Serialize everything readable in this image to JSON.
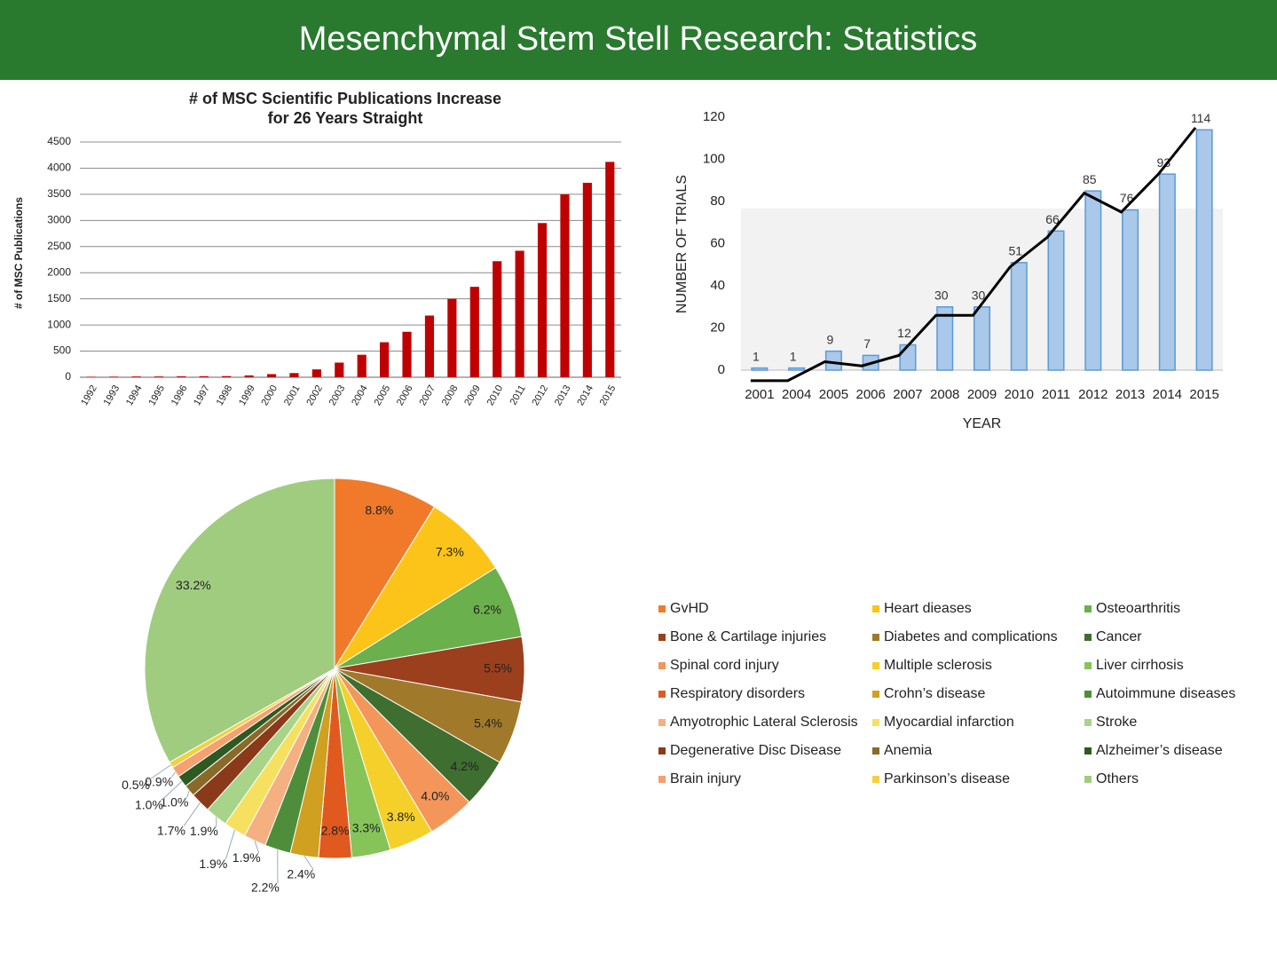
{
  "header": {
    "title": "Mesenchymal Stem Stell Research: Statistics"
  },
  "chart_data": [
    {
      "type": "bar",
      "title": [
        "# of MSC Scientific Publications Increase",
        "for 26 Years Straight"
      ],
      "ylabel": "# of MSC Publications",
      "categories": [
        "1992",
        "1993",
        "1994",
        "1995",
        "1996",
        "1997",
        "1998",
        "1999",
        "2000",
        "2001",
        "2002",
        "2003",
        "2004",
        "2005",
        "2006",
        "2007",
        "2008",
        "2009",
        "2010",
        "2011",
        "2012",
        "2013",
        "2014",
        "2015"
      ],
      "values": [
        10,
        12,
        15,
        15,
        18,
        20,
        22,
        35,
        60,
        80,
        150,
        280,
        430,
        670,
        870,
        1180,
        1500,
        1730,
        2220,
        2420,
        2950,
        3500,
        3720,
        4120
      ],
      "color": "#c00000",
      "ylim": [
        0,
        4500
      ],
      "yticks": [
        0,
        500,
        1000,
        1500,
        2000,
        2500,
        3000,
        3500,
        4000,
        4500
      ],
      "grid": true
    },
    {
      "type": "combo",
      "xlabel": "YEAR",
      "ylabel": "NUMBER OF TRIALS",
      "categories": [
        "2001",
        "2004",
        "2005",
        "2006",
        "2007",
        "2008",
        "2009",
        "2010",
        "2011",
        "2012",
        "2013",
        "2014",
        "2015"
      ],
      "series": [
        {
          "type": "bar",
          "color": "#a9c8ea",
          "values": [
            1,
            1,
            9,
            7,
            12,
            30,
            30,
            51,
            66,
            85,
            76,
            93,
            114
          ],
          "data_labels": true
        },
        {
          "type": "line",
          "color": "#000000",
          "values": [
            -5,
            -5,
            4,
            2,
            7,
            26,
            26,
            49,
            63,
            84,
            75,
            93,
            115
          ]
        }
      ],
      "ylim": [
        0,
        120
      ],
      "yticks": [
        0,
        20,
        40,
        60,
        80,
        100,
        120
      ],
      "grid": false
    },
    {
      "type": "pie",
      "categories": [
        "GvHD",
        "Heart dieases",
        "Osteoarthritis",
        "Bone & Cartilage injuries",
        "Diabetes and complications",
        "Cancer",
        "Spinal cord injury",
        "Multiple sclerosis",
        "Liver cirrhosis",
        "Respiratory disorders",
        "Crohn’s disease",
        "Autoimmune diseases",
        "Amyotrophic Lateral Sclerosis",
        "Myocardial infarction",
        "Stroke",
        "Degenerative Disc Disease",
        "Anemia",
        "Alzheimer’s disease",
        "Brain injury",
        "Parkinson’s disease",
        "Others"
      ],
      "values": [
        8.8,
        7.3,
        6.2,
        5.5,
        5.4,
        4.2,
        4.0,
        3.8,
        3.3,
        2.8,
        2.4,
        2.2,
        1.9,
        1.9,
        1.9,
        1.7,
        1.0,
        1.0,
        0.9,
        0.5,
        33.2
      ],
      "value_labels": [
        "8.8%",
        "7.3%",
        "6.2%",
        "5.5%",
        "5.4%",
        "4.2%",
        "4.0%",
        "3.8%",
        "3.3%",
        "2.8%",
        "2.4%",
        "2.2%",
        "1.9%",
        "1.9%",
        "1.9%",
        "1.7%",
        "1.0%",
        "1.0%",
        "0.9%",
        "0.5%",
        "33.2%"
      ],
      "colors": [
        "#f07a2a",
        "#fcc419",
        "#6ab04c",
        "#9c3f1c",
        "#a07a2a",
        "#3e6e30",
        "#f4965a",
        "#f5d02a",
        "#86c45a",
        "#e05a20",
        "#d0a020",
        "#4e8e3a",
        "#f4b080",
        "#f5e060",
        "#a8d48a",
        "#8a3a18",
        "#8a6a28",
        "#2e5a22",
        "#f4a070",
        "#f4d040",
        "#a0cc80"
      ],
      "legend": "right",
      "legend_columns": 3
    }
  ]
}
